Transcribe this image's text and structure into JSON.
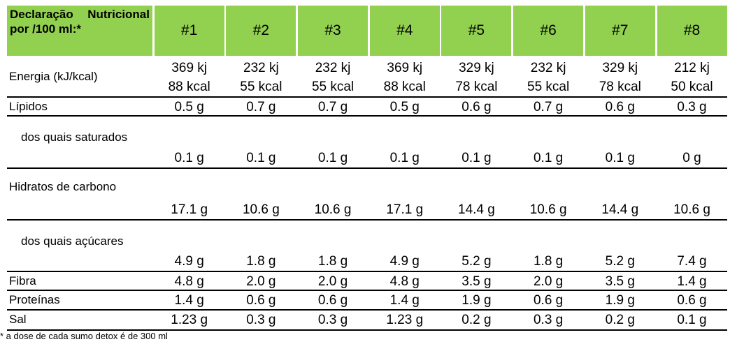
{
  "header": {
    "label": "Declaração Nutricional por /100 ml:*",
    "columns": [
      "#1",
      "#2",
      "#3",
      "#4",
      "#5",
      "#6",
      "#7",
      "#8"
    ]
  },
  "table": {
    "rows": [
      {
        "label": "Energia (kJ/kcal)",
        "cells": [
          [
            "369 kj",
            "88 kcal"
          ],
          [
            "232 kj",
            "55 kcal"
          ],
          [
            "232 kj",
            "55 kcal"
          ],
          [
            "369 kj",
            "88 kcal"
          ],
          [
            "329 kj",
            "78 kcal"
          ],
          [
            "232 kj",
            "55 kcal"
          ],
          [
            "329 kj",
            "78 kcal"
          ],
          [
            "212 kj",
            "50 kcal"
          ]
        ]
      },
      {
        "label": "Lípidos",
        "cells": [
          "0.5 g",
          "0.7 g",
          "0.7 g",
          "0.5 g",
          "0.6 g",
          "0.7 g",
          "0.6 g",
          "0.3 g"
        ]
      },
      {
        "label": "dos quais saturados",
        "cells": [
          "0.1 g",
          "0.1 g",
          "0.1 g",
          "0.1 g",
          "0.1 g",
          "0.1 g",
          "0.1 g",
          "0 g"
        ]
      },
      {
        "label": "Hidratos de carbono",
        "cells": [
          "17.1 g",
          "10.6 g",
          "10.6 g",
          "17.1 g",
          "14.4 g",
          "10.6 g",
          "14.4 g",
          "10.6 g"
        ]
      },
      {
        "label": "dos quais açúcares",
        "cells": [
          "4.9 g",
          "1.8 g",
          "1.8 g",
          "4.9 g",
          "5.2 g",
          "1.8 g",
          "5.2 g",
          "7.4 g"
        ]
      },
      {
        "label": "Fibra",
        "cells": [
          "4.8 g",
          "2.0 g",
          "2.0 g",
          "4.8 g",
          "3.5 g",
          "2.0 g",
          "3.5 g",
          "1.4 g"
        ]
      },
      {
        "label": "Proteínas",
        "cells": [
          "1.4 g",
          "0.6 g",
          "0.6 g",
          "1.4 g",
          "1.9 g",
          "0.6 g",
          "1.9 g",
          "0.6 g"
        ]
      },
      {
        "label": "Sal",
        "cells": [
          "1.23 g",
          "0.3 g",
          "0.3 g",
          "1.23 g",
          "0.2 g",
          "0.3 g",
          "0.2 g",
          "0.1 g"
        ]
      }
    ]
  },
  "footnote": "* a dose de cada sumo detox é de 300 ml"
}
